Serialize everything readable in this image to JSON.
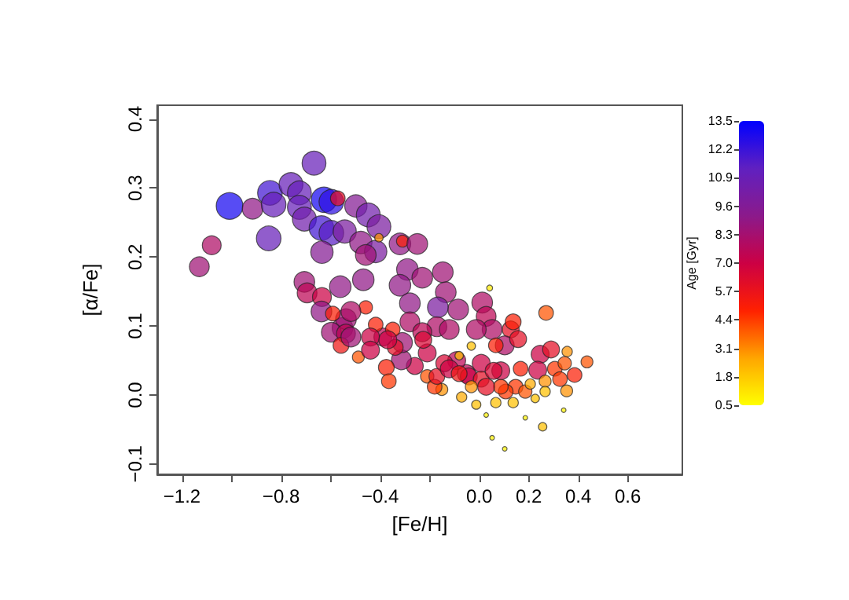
{
  "chart_data": {
    "type": "bubble",
    "xlabel": "[Fe/H]",
    "ylabel": "[α/Fe]",
    "clabel": "Age [Gyr]",
    "xlim": [
      -1.3,
      0.82
    ],
    "ylim": [
      -0.115,
      0.42
    ],
    "xticks": [
      {
        "value": -1.2,
        "label": "−1.2"
      },
      {
        "value": -1.0,
        "label": null
      },
      {
        "value": -0.8,
        "label": "−0.8"
      },
      {
        "value": -0.6,
        "label": null
      },
      {
        "value": -0.4,
        "label": "−0.4"
      },
      {
        "value": -0.2,
        "label": null
      },
      {
        "value": 0,
        "label": "0.0"
      },
      {
        "value": 0.2,
        "label": "0.2"
      },
      {
        "value": 0.4,
        "label": "0.4"
      },
      {
        "value": 0.6,
        "label": "0.6"
      }
    ],
    "yticks": [
      {
        "value": -0.1,
        "label": "−0.1"
      },
      {
        "value": 0,
        "label": "0.0"
      },
      {
        "value": 0.1,
        "label": "0.1"
      },
      {
        "value": 0.2,
        "label": "0.2"
      },
      {
        "value": 0.3,
        "label": "0.3"
      },
      {
        "value": 0.4,
        "label": "0.4"
      }
    ],
    "clim": [
      0.5,
      13.5
    ],
    "cticks": [
      0.5,
      1.8,
      3.1,
      4.4,
      5.7,
      {
        "value": 7,
        "label": "7.0"
      },
      8.3,
      9.6,
      10.9,
      12.2,
      13.5
    ],
    "marker": "circle",
    "x": [
      -1.008,
      -0.915,
      -1.08,
      -1.13,
      -0.85,
      -0.845,
      -0.83,
      -0.667,
      -0.76,
      -0.726,
      -0.726,
      -0.706,
      -0.627,
      -0.597,
      -0.571,
      -0.637,
      -0.597,
      -0.543,
      -0.498,
      -0.448,
      -0.405,
      -0.478,
      -0.418,
      -0.458,
      -0.635,
      -0.706,
      -0.695,
      -0.635,
      -0.561,
      -0.468,
      -0.32,
      -0.31,
      -0.405,
      -0.29,
      -0.32,
      -0.458,
      -0.25,
      -0.23,
      -0.147,
      -0.135,
      -0.085,
      -0.167,
      0.012,
      0.028,
      0.052,
      -0.012,
      0.042,
      0.27,
      -0.28,
      -0.28,
      -0.171,
      -0.121,
      0.127,
      0.137,
      0.103,
      0.157,
      0.067,
      0.246,
      0.29,
      0.435,
      0.385,
      0.353,
      0.256,
      0.052,
      0.103,
      0.186,
      0.341,
      0.028,
      0.236,
      0.087,
      -0.052,
      0.008,
      -0.091,
      -0.042,
      0.008,
      0.147,
      0.186,
      0.107,
      0.067,
      -0.071,
      -0.012,
      -0.151,
      -0.21,
      -0.26,
      -0.314,
      -0.375,
      -0.365,
      -0.488,
      -0.18,
      -0.171,
      -0.21,
      -0.31,
      -0.339,
      -0.389,
      -0.418,
      -0.552,
      -0.538,
      -0.637,
      -0.591,
      -0.518,
      -0.597,
      -0.538,
      -0.558,
      -0.518,
      -0.439,
      -0.349,
      -0.439,
      -0.369,
      -0.23,
      -0.226,
      -0.141,
      -0.121,
      -0.081,
      0.058,
      0.167,
      0.305,
      0.326,
      0.266,
      0.206,
      0.266,
      0.137,
      0.087,
      0.028,
      -0.032,
      0.345,
      0.355,
      0.226,
      -0.081,
      -0.032
    ],
    "values": [
      0.274,
      0.27,
      0.217,
      0.186,
      0.227,
      0.293,
      0.276,
      0.336,
      0.305,
      0.293,
      0.272,
      0.255,
      0.283,
      0.28,
      0.285,
      0.242,
      0.235,
      0.237,
      0.274,
      0.261,
      0.244,
      0.221,
      0.208,
      0.203,
      0.207,
      0.164,
      0.148,
      0.142,
      0.157,
      0.167,
      0.219,
      0.223,
      0.228,
      0.182,
      0.159,
      0.127,
      0.219,
      0.17,
      0.178,
      0.149,
      0.124,
      0.127,
      0.134,
      0.114,
      0.095,
      0.095,
      0.155,
      0.119,
      0.133,
      0.106,
      0.099,
      0.095,
      0.095,
      0.106,
      0.072,
      0.081,
      0.072,
      0.059,
      0.066,
      0.048,
      0.029,
      0.006,
      -0.046,
      -0.062,
      -0.078,
      -0.033,
      -0.022,
      -0.029,
      0.036,
      0.035,
      0.031,
      0.046,
      0.05,
      0.027,
      0.023,
      0.012,
      0.005,
      0.005,
      -0.011,
      -0.003,
      -0.014,
      0.008,
      0.027,
      0.042,
      0.051,
      0.04,
      0.02,
      0.055,
      0.012,
      0.027,
      0.061,
      0.076,
      0.069,
      0.084,
      0.102,
      0.097,
      0.11,
      0.121,
      0.118,
      0.121,
      0.091,
      0.089,
      0.072,
      0.084,
      0.084,
      0.095,
      0.065,
      0.08,
      0.091,
      0.08,
      0.046,
      0.038,
      0.031,
      0.035,
      0.038,
      0.038,
      0.023,
      0.02,
      0.016,
      0.005,
      -0.011,
      0.012,
      0.012,
      0.012,
      0.046,
      0.063,
      -0.005,
      0.057,
      0.071
    ],
    "sizes": [
      1,
      0.6,
      0.5,
      0.55,
      0.85,
      0.85,
      0.85,
      0.8,
      0.8,
      0.8,
      0.8,
      0.8,
      0.9,
      0.85,
      0.3,
      0.85,
      0.85,
      0.75,
      0.7,
      0.8,
      0.8,
      0.7,
      0.7,
      0.6,
      0.7,
      0.6,
      0.55,
      0.5,
      0.65,
      0.65,
      0.65,
      0.2,
      0.1,
      0.65,
      0.65,
      0.25,
      0.6,
      0.6,
      0.6,
      0.6,
      0.6,
      0.6,
      0.6,
      0.55,
      0.55,
      0.55,
      0.05,
      0.3,
      0.6,
      0.55,
      0.55,
      0.55,
      0.4,
      0.35,
      0.5,
      0.4,
      0.3,
      0.45,
      0.4,
      0.2,
      0.3,
      0.2,
      0.1,
      0.03,
      0.03,
      0.03,
      0.03,
      0.03,
      0.45,
      0.45,
      0.45,
      0.45,
      0.45,
      0.4,
      0.35,
      0.3,
      0.25,
      0.3,
      0.15,
      0.15,
      0.12,
      0.2,
      0.25,
      0.4,
      0.55,
      0.35,
      0.3,
      0.2,
      0.3,
      0.35,
      0.45,
      0.55,
      0.35,
      0.45,
      0.3,
      0.6,
      0.6,
      0.6,
      0.3,
      0.55,
      0.55,
      0.5,
      0.35,
      0.55,
      0.45,
      0.3,
      0.45,
      0.45,
      0.5,
      0.4,
      0.4,
      0.45,
      0.35,
      0.4,
      0.3,
      0.3,
      0.3,
      0.2,
      0.15,
      0.15,
      0.15,
      0.3,
      0.4,
      0.2,
      0.25,
      0.15,
      0.1,
      0.1,
      0.1
    ],
    "cvalues": [
      13,
      9,
      8,
      8.5,
      11,
      12,
      11,
      11,
      11,
      11,
      11,
      10.5,
      13,
      12.5,
      6,
      12,
      11.5,
      10,
      9.5,
      10.5,
      10,
      9,
      10,
      8.5,
      9.5,
      8.5,
      7.5,
      7,
      9,
      9,
      9,
      5,
      3,
      9,
      9,
      5,
      8.5,
      8.5,
      8.5,
      8.5,
      8.5,
      10,
      8,
      7.5,
      8,
      8,
      1,
      4,
      9,
      8,
      8,
      8,
      6,
      5,
      8,
      6,
      5,
      7,
      6,
      4,
      5,
      3,
      2,
      0.8,
      0.8,
      0.8,
      0.8,
      0.8,
      7,
      7,
      7.5,
      7,
      7.5,
      7,
      6,
      4.5,
      4,
      4.5,
      2,
      2.5,
      2,
      3,
      4,
      7,
      8.5,
      5,
      4.5,
      4,
      4.5,
      6,
      7,
      8.5,
      6,
      7.5,
      5,
      8.5,
      8.5,
      9,
      5,
      8,
      8.5,
      7.5,
      5.5,
      8.5,
      7,
      5,
      7,
      7,
      7.5,
      6.5,
      6.5,
      7,
      5.5,
      6.5,
      5,
      4.5,
      4.5,
      3,
      2.5,
      2,
      2,
      4.5,
      6,
      3,
      4,
      3,
      2,
      2,
      2
    ]
  }
}
